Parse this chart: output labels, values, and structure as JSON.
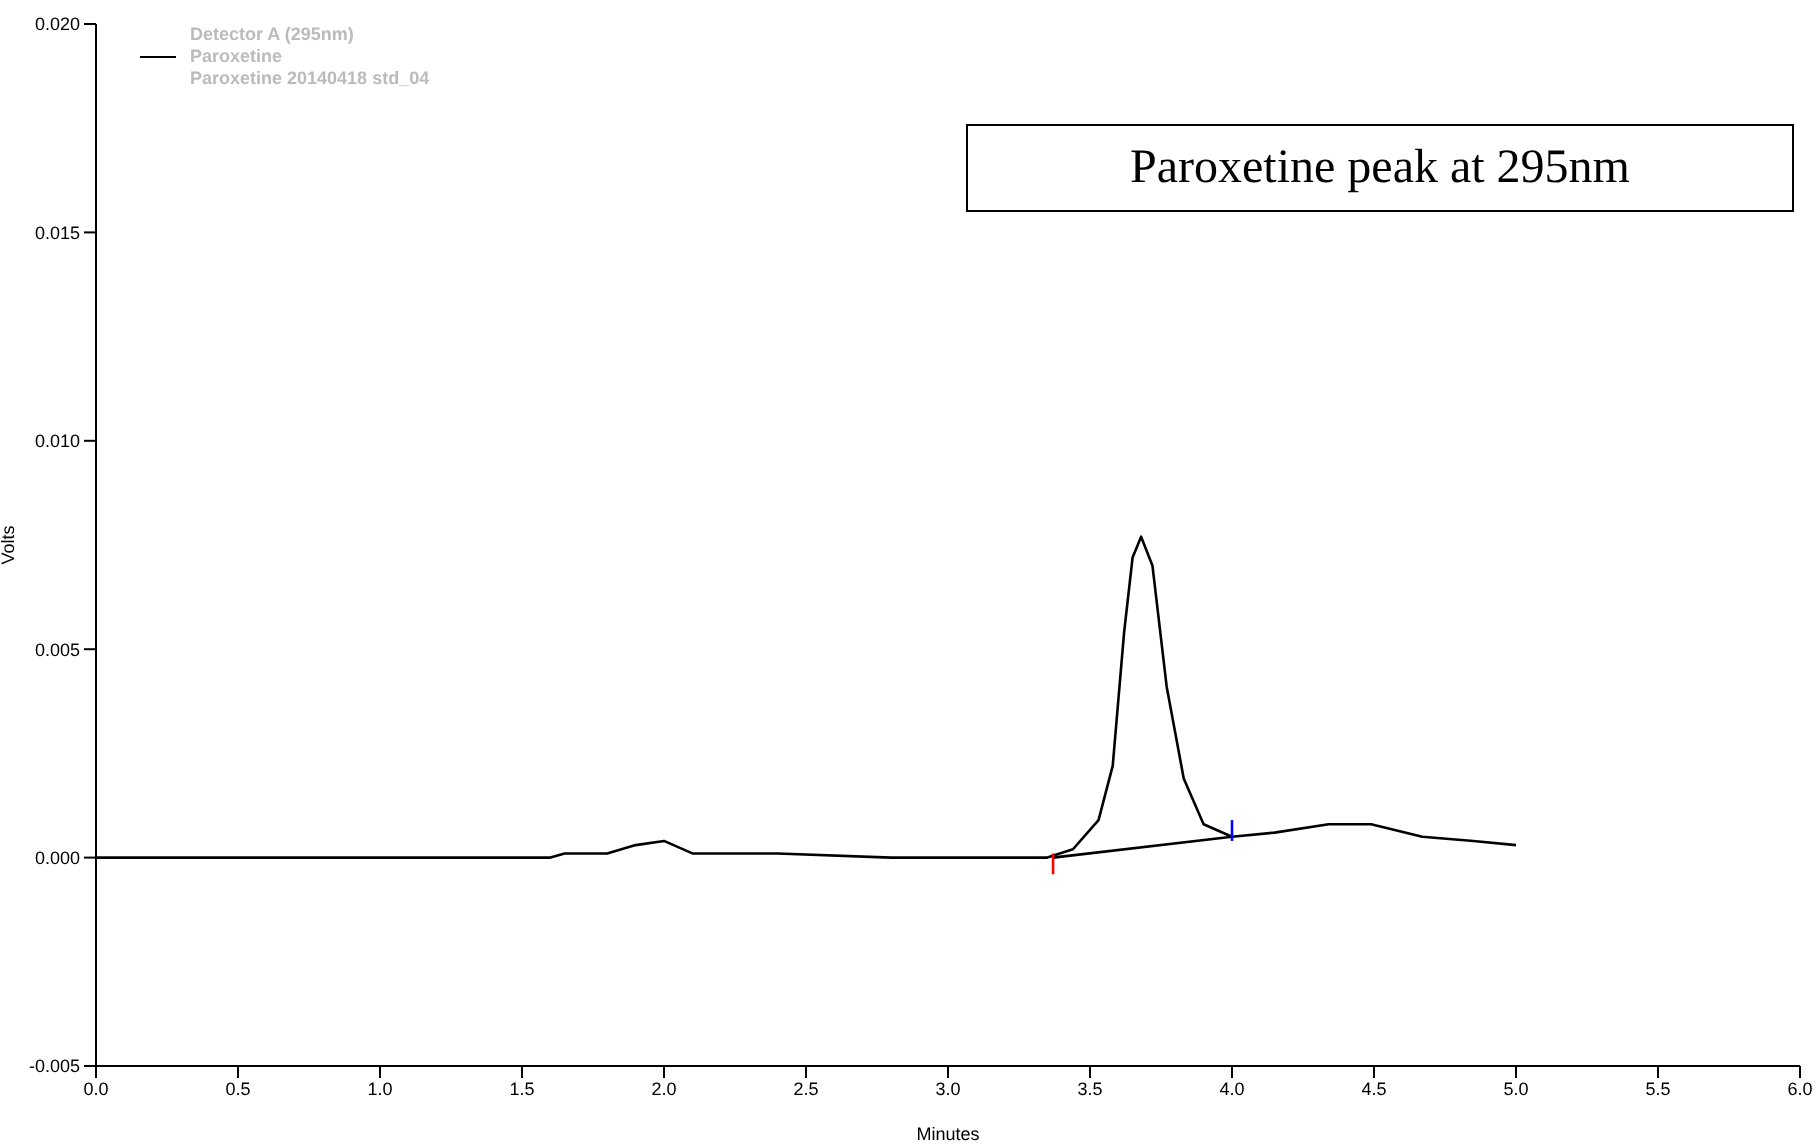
{
  "chart_data": {
    "type": "line",
    "xlabel": "Minutes",
    "ylabel": "Volts",
    "legend_title": "Detector A (295nm)",
    "annotations": [
      "Paroxetine peak at 295nm",
      "Paroxetine 20140418 std_04"
    ],
    "xlim": [
      0,
      6
    ],
    "xticks": [
      {
        "value": 0,
        "label": "0.0"
      },
      0.5,
      {
        "value": 1,
        "label": "1.0"
      },
      1.5,
      {
        "value": 2,
        "label": "2.0"
      },
      2.5,
      {
        "value": 3,
        "label": "3.0"
      },
      3.5,
      {
        "value": 4,
        "label": "4.0"
      },
      4.5,
      {
        "value": 5,
        "label": "5.0"
      },
      5.5,
      {
        "value": 6,
        "label": "6.0"
      }
    ],
    "ylim": [
      -0.005,
      0.02
    ],
    "yticks": [
      {
        "value": -0.005,
        "label": "-0.005"
      },
      {
        "value": 0,
        "label": "0.000"
      },
      0.005,
      {
        "value": 0.01,
        "label": "0.010"
      },
      0.015,
      {
        "value": 0.02,
        "label": "0.020"
      }
    ],
    "grid": false,
    "legend": "top left",
    "marker": "none",
    "line_style": "solid",
    "series": [
      {
        "name": "Paroxetine",
        "color": "#000000",
        "x": [
          0,
          0.75,
          0.88,
          1.6,
          1.65,
          1.8,
          1.9,
          2.0,
          2.1,
          2.4,
          2.8,
          3.3,
          3.35,
          3.44,
          3.53,
          3.58,
          3.62,
          3.65,
          3.68,
          3.72,
          3.77,
          3.83,
          3.9,
          4.0,
          4.15,
          4.34,
          4.49,
          4.67,
          4.85,
          5.0
        ],
        "values": [
          0,
          0,
          0,
          0,
          0.0001,
          0.0001,
          0.0003,
          0.0004,
          0.0001,
          0.0001,
          0,
          0,
          0,
          0.0002,
          0.0009,
          0.0022,
          0.0054,
          0.0072,
          0.0077,
          0.007,
          0.0041,
          0.0019,
          0.0008,
          0.0005,
          0.0006,
          0.0008,
          0.0008,
          0.0005,
          0.0004,
          0.0003
        ]
      },
      {
        "color": "#000000",
        "x": [
          3.37,
          4.0
        ],
        "values": [
          0,
          0.0005
        ]
      },
      {
        "color": "#ff0000",
        "x": [
          3.37,
          3.37
        ],
        "values": [
          -0.0004,
          0.0001
        ]
      },
      {
        "color": "#0000ff",
        "x": [
          4.0,
          4.0
        ],
        "values": [
          0.0004,
          0.0009
        ]
      }
    ]
  }
}
